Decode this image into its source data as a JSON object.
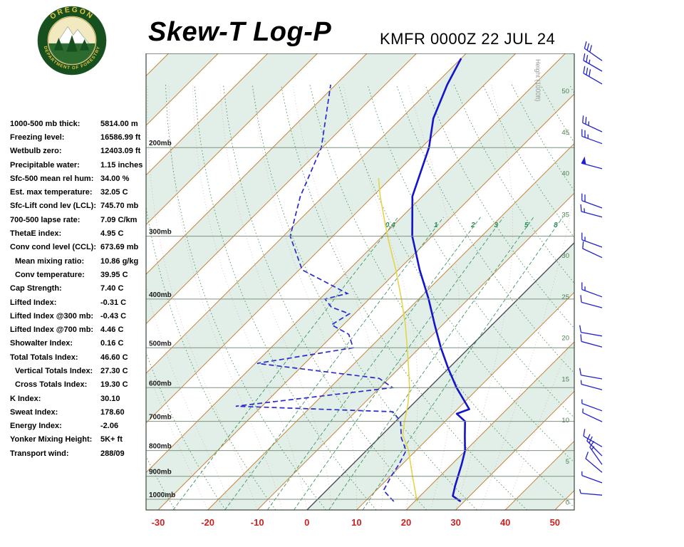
{
  "header": {
    "title": "Skew-T Log-P",
    "station_time": "KMFR 0000Z 22 JUL 24",
    "logo": {
      "org_top": "OREGON",
      "org_bottom": "DEPARTMENT OF FORESTRY"
    }
  },
  "indices": [
    {
      "label": "1000-500 mb thick:",
      "value": "5814.00 m",
      "indent": false
    },
    {
      "label": "Freezing level:",
      "value": "16586.99 ft",
      "indent": false
    },
    {
      "label": "Wetbulb zero:",
      "value": "12403.09 ft",
      "indent": false
    },
    {
      "label": "Precipitable water:",
      "value": "1.15 inches",
      "indent": false
    },
    {
      "label": "Sfc-500 mean rel hum:",
      "value": "34.00 %",
      "indent": false
    },
    {
      "label": "Est. max temperature:",
      "value": "32.05 C",
      "indent": false
    },
    {
      "label": "Sfc-Lift cond lev (LCL):",
      "value": "745.70 mb",
      "indent": false
    },
    {
      "label": "700-500 lapse rate:",
      "value": "7.09 C/km",
      "indent": false
    },
    {
      "label": "ThetaE index:",
      "value": "4.95 C",
      "indent": false
    },
    {
      "label": "Conv cond level (CCL):",
      "value": "673.69 mb",
      "indent": false
    },
    {
      "label": "Mean mixing ratio:",
      "value": "10.86 g/kg",
      "indent": true
    },
    {
      "label": "Conv temperature:",
      "value": "39.95 C",
      "indent": true
    },
    {
      "label": "Cap Strength:",
      "value": "7.40 C",
      "indent": false
    },
    {
      "label": "Lifted Index:",
      "value": "-0.31 C",
      "indent": false
    },
    {
      "label": "Lifted Index @300 mb:",
      "value": "-0.43 C",
      "indent": false
    },
    {
      "label": "Lifted Index @700 mb:",
      "value": "4.46 C",
      "indent": false
    },
    {
      "label": "Showalter Index:",
      "value": "0.16 C",
      "indent": false
    },
    {
      "label": "Total Totals Index:",
      "value": "46.60 C",
      "indent": false
    },
    {
      "label": "Vertical Totals Index:",
      "value": "27.30 C",
      "indent": true
    },
    {
      "label": "Cross Totals Index:",
      "value": "19.30 C",
      "indent": true
    },
    {
      "label": "K Index:",
      "value": "30.10",
      "indent": false
    },
    {
      "label": "Sweat Index:",
      "value": "178.60",
      "indent": false
    },
    {
      "label": "Energy Index:",
      "value": "-2.06",
      "indent": false
    },
    {
      "label": "Yonker Mixing Height:",
      "value": "5K+ ft",
      "indent": false
    },
    {
      "label": "Transport wind:",
      "value": "288/09",
      "indent": false
    }
  ],
  "chart_data": {
    "type": "skew-t-log-p",
    "pressure_axis": {
      "min_top": 130,
      "max_bottom": 1050,
      "gridlines": [
        200,
        300,
        400,
        500,
        600,
        700,
        800,
        900,
        1000
      ],
      "unit": "mb"
    },
    "temp_axis_ticks": [
      -30,
      -20,
      -10,
      0,
      10,
      20,
      30,
      40,
      50
    ],
    "isotherms": {
      "start": -120,
      "end": 60,
      "step": 10
    },
    "dry_adiabats": {
      "start": -40,
      "end": 200,
      "step": 10
    },
    "moist_adiabats": {
      "start": -20,
      "end": 40,
      "step": 5
    },
    "mixing_ratio_values": [
      0.4,
      1,
      2,
      3,
      5,
      8
    ],
    "height_axis": {
      "label": "Height (1000ft)",
      "ticks": [
        50,
        45,
        40,
        35,
        30,
        25,
        20,
        15,
        10,
        5,
        0
      ],
      "top_fraction": 0.083,
      "step_fraction": 0.0901
    },
    "temperature_profile": [
      [
        1010,
        29.3
      ],
      [
        985,
        26.6
      ],
      [
        940,
        25.0
      ],
      [
        850,
        21.9
      ],
      [
        800,
        19.9
      ],
      [
        750,
        17.0
      ],
      [
        700,
        14.0
      ],
      [
        676,
        10.8
      ],
      [
        662,
        12.4
      ],
      [
        600,
        5.5
      ],
      [
        550,
        0.0
      ],
      [
        500,
        -5.7
      ],
      [
        450,
        -11.6
      ],
      [
        400,
        -18.0
      ],
      [
        350,
        -25.7
      ],
      [
        300,
        -34.0
      ],
      [
        250,
        -42.0
      ],
      [
        200,
        -48.5
      ],
      [
        175,
        -53.5
      ],
      [
        150,
        -57.5
      ],
      [
        133,
        -60.0
      ]
    ],
    "dewpoint_profile": [
      [
        1010,
        15.8
      ],
      [
        960,
        11.5
      ],
      [
        900,
        10.2
      ],
      [
        850,
        9.3
      ],
      [
        800,
        8.0
      ],
      [
        755,
        4.5
      ],
      [
        700,
        1.0
      ],
      [
        670,
        -2.5
      ],
      [
        653,
        -35.3
      ],
      [
        600,
        -7.4
      ],
      [
        575,
        -12.0
      ],
      [
        537,
        -39.6
      ],
      [
        500,
        -23.4
      ],
      [
        470,
        -27.0
      ],
      [
        450,
        -32.4
      ],
      [
        428,
        -31.0
      ],
      [
        415,
        -36.0
      ],
      [
        400,
        -38.9
      ],
      [
        390,
        -35.5
      ],
      [
        350,
        -49.4
      ],
      [
        300,
        -58.6
      ],
      [
        250,
        -64.6
      ],
      [
        200,
        -70.2
      ],
      [
        150,
        -81.0
      ]
    ],
    "parcel_profile": [
      [
        1010,
        20.5
      ],
      [
        900,
        14.5
      ],
      [
        800,
        8.5
      ],
      [
        745,
        4.2
      ],
      [
        700,
        1.8
      ],
      [
        650,
        -0.8
      ],
      [
        600,
        -4.0
      ],
      [
        550,
        -8.0
      ],
      [
        500,
        -12.5
      ],
      [
        450,
        -17.5
      ],
      [
        400,
        -23.5
      ],
      [
        350,
        -30.5
      ],
      [
        300,
        -39.0
      ],
      [
        250,
        -48.5
      ],
      [
        230,
        -52.5
      ]
    ],
    "wind_barbs": [
      {
        "yf": 0.016,
        "dir": 305,
        "spd": 30
      },
      {
        "yf": 0.039,
        "dir": 300,
        "spd": 25
      },
      {
        "yf": 0.067,
        "dir": 300,
        "spd": 30
      },
      {
        "yf": 0.172,
        "dir": 295,
        "spd": 25
      },
      {
        "yf": 0.198,
        "dir": 290,
        "spd": 25
      },
      {
        "yf": 0.253,
        "dir": 285,
        "spd": 50
      },
      {
        "yf": 0.339,
        "dir": 290,
        "spd": 20
      },
      {
        "yf": 0.359,
        "dir": 285,
        "spd": 15
      },
      {
        "yf": 0.425,
        "dir": 290,
        "spd": 15
      },
      {
        "yf": 0.448,
        "dir": 295,
        "spd": 10
      },
      {
        "yf": 0.534,
        "dir": 290,
        "spd": 15
      },
      {
        "yf": 0.558,
        "dir": 285,
        "spd": 10
      },
      {
        "yf": 0.62,
        "dir": 280,
        "spd": 10
      },
      {
        "yf": 0.644,
        "dir": 285,
        "spd": 10
      },
      {
        "yf": 0.714,
        "dir": 280,
        "spd": 10
      },
      {
        "yf": 0.738,
        "dir": 285,
        "spd": 5
      },
      {
        "yf": 0.784,
        "dir": 290,
        "spd": 5
      },
      {
        "yf": 0.808,
        "dir": 295,
        "spd": 5
      },
      {
        "yf": 0.863,
        "dir": 300,
        "spd": 10
      },
      {
        "yf": 0.883,
        "dir": 315,
        "spd": 20
      },
      {
        "yf": 0.902,
        "dir": 325,
        "spd": 15
      },
      {
        "yf": 0.919,
        "dir": 310,
        "spd": 10
      },
      {
        "yf": 0.942,
        "dir": 290,
        "spd": 5
      },
      {
        "yf": 0.969,
        "dir": 275,
        "spd": 5
      }
    ],
    "colors": {
      "temperature": "#1414cc",
      "dewpoint": "#2a2acc",
      "parcel": "#e6d44a",
      "isotherm": "#c8833c",
      "zero_isotherm": "#444455",
      "dry_adiabat": "#3e8a4e",
      "moist_adiabat": "#c07878",
      "mixing_ratio": "#2e8b57",
      "band_fill": "#e1efe8",
      "grid": "#7f937f",
      "frame": "#3a4a3a",
      "temp_tick": "#cc2020",
      "height_tick": "#4e7d4e",
      "barb": "#2222cc",
      "pressure_label": "#1a1a1a"
    }
  }
}
